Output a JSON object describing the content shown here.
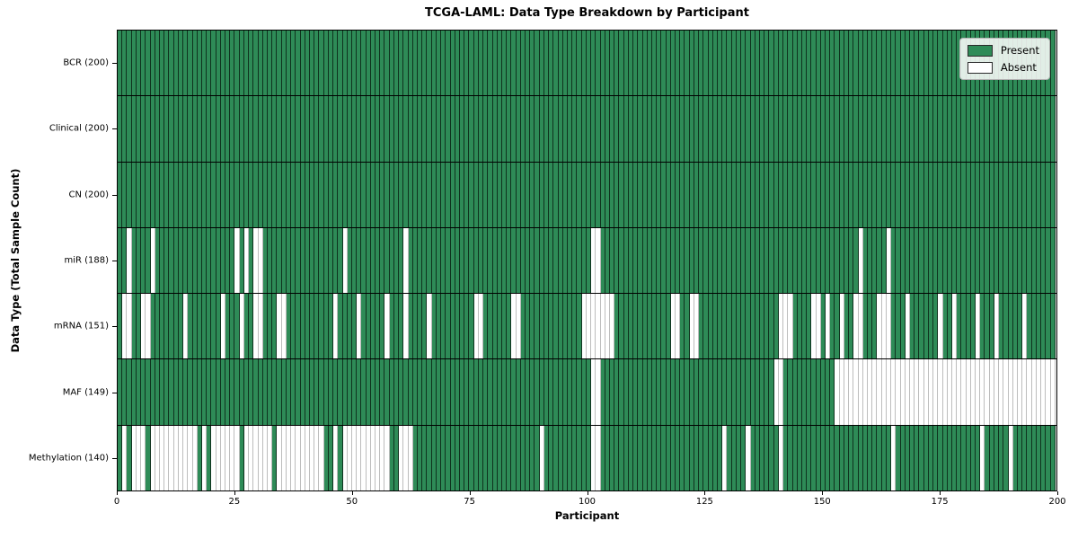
{
  "title": "TCGA-LAML: Data Type Breakdown by Participant",
  "xlabel": "Participant",
  "ylabel": "Data Type (Total Sample Count)",
  "legend": {
    "present_label": "Present",
    "absent_label": "Absent",
    "position": "upper right"
  },
  "colors": {
    "present": "#2e8b57",
    "absent": "#ffffff",
    "cell_edge_present": "#14321f",
    "cell_edge_absent": "#bdbdbd",
    "row_divider": "#000000"
  },
  "chart_data": {
    "type": "heatmap",
    "title": "TCGA-LAML: Data Type Breakdown by Participant",
    "xlabel": "Participant",
    "ylabel": "Data Type (Total Sample Count)",
    "n_participants": 200,
    "xlim": [
      0,
      200
    ],
    "x_ticks": [
      0,
      25,
      50,
      75,
      100,
      125,
      150,
      175,
      200
    ],
    "grid": false,
    "legend_position": "upper right",
    "value_encoding": {
      "present": 1,
      "absent": 0
    },
    "rows": [
      {
        "name": "BCR",
        "label": "BCR (200)",
        "present_count": 200,
        "absent_indices": []
      },
      {
        "name": "Clinical",
        "label": "Clinical (200)",
        "present_count": 200,
        "absent_indices": []
      },
      {
        "name": "CN",
        "label": "CN (200)",
        "present_count": 200,
        "absent_indices": []
      },
      {
        "name": "miR",
        "label": "miR (188)",
        "present_count": 188,
        "absent_indices": [
          2,
          7,
          25,
          27,
          29,
          30,
          48,
          61,
          101,
          102,
          158,
          164
        ]
      },
      {
        "name": "mRNA",
        "label": "mRNA (151)",
        "present_count": 151,
        "absent_indices": [
          1,
          2,
          5,
          6,
          14,
          22,
          26,
          29,
          30,
          34,
          35,
          46,
          51,
          57,
          61,
          66,
          76,
          77,
          84,
          85,
          99,
          100,
          101,
          102,
          103,
          104,
          105,
          118,
          119,
          122,
          123,
          141,
          142,
          143,
          148,
          149,
          151,
          154,
          157,
          158,
          162,
          163,
          164,
          168,
          175,
          178,
          183,
          187,
          193
        ]
      },
      {
        "name": "MAF",
        "label": "MAF (149)",
        "present_count": 149,
        "absent_indices": [
          101,
          102,
          140,
          141,
          153,
          154,
          155,
          156,
          157,
          158,
          159,
          160,
          161,
          162,
          163,
          164,
          165,
          166,
          167,
          168,
          169,
          170,
          171,
          172,
          173,
          174,
          175,
          176,
          177,
          178,
          179,
          180,
          181,
          182,
          183,
          184,
          185,
          186,
          187,
          188,
          189,
          190,
          191,
          192,
          193,
          194,
          195,
          196,
          197,
          198,
          199
        ]
      },
      {
        "name": "Methylation",
        "label": "Methylation (140)",
        "present_count": 140,
        "absent_indices": [
          1,
          3,
          4,
          5,
          7,
          8,
          9,
          10,
          11,
          12,
          13,
          14,
          15,
          16,
          18,
          20,
          21,
          22,
          23,
          24,
          25,
          27,
          28,
          29,
          30,
          31,
          32,
          34,
          35,
          36,
          37,
          38,
          39,
          40,
          41,
          42,
          43,
          46,
          48,
          49,
          50,
          51,
          52,
          53,
          54,
          55,
          56,
          57,
          60,
          61,
          62,
          90,
          101,
          102,
          129,
          134,
          141,
          165,
          184,
          190
        ]
      }
    ]
  }
}
